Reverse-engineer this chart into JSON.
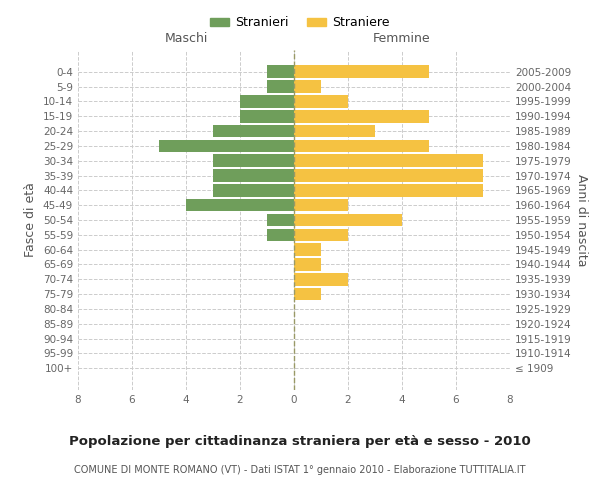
{
  "age_groups": [
    "100+",
    "95-99",
    "90-94",
    "85-89",
    "80-84",
    "75-79",
    "70-74",
    "65-69",
    "60-64",
    "55-59",
    "50-54",
    "45-49",
    "40-44",
    "35-39",
    "30-34",
    "25-29",
    "20-24",
    "15-19",
    "10-14",
    "5-9",
    "0-4"
  ],
  "birth_years": [
    "≤ 1909",
    "1910-1914",
    "1915-1919",
    "1920-1924",
    "1925-1929",
    "1930-1934",
    "1935-1939",
    "1940-1944",
    "1945-1949",
    "1950-1954",
    "1955-1959",
    "1960-1964",
    "1965-1969",
    "1970-1974",
    "1975-1979",
    "1980-1984",
    "1985-1989",
    "1990-1994",
    "1995-1999",
    "2000-2004",
    "2005-2009"
  ],
  "males": [
    0,
    0,
    0,
    0,
    0,
    0,
    0,
    0,
    0,
    1,
    1,
    4,
    3,
    3,
    3,
    5,
    3,
    2,
    2,
    1,
    1
  ],
  "females": [
    0,
    0,
    0,
    0,
    0,
    1,
    2,
    1,
    1,
    2,
    4,
    2,
    7,
    7,
    7,
    5,
    3,
    5,
    2,
    1,
    5
  ],
  "male_color": "#6f9e5b",
  "female_color": "#f5c242",
  "grid_color": "#cccccc",
  "bar_height": 0.85,
  "xlim": 8,
  "title": "Popolazione per cittadinanza straniera per età e sesso - 2010",
  "subtitle": "COMUNE DI MONTE ROMANO (VT) - Dati ISTAT 1° gennaio 2010 - Elaborazione TUTTITALIA.IT",
  "ylabel_left": "Fasce di età",
  "ylabel_right": "Anni di nascita",
  "legend_stranieri": "Stranieri",
  "legend_straniere": "Straniere",
  "maschi_label": "Maschi",
  "femmine_label": "Femmine",
  "background_color": "#ffffff",
  "title_fontsize": 9.5,
  "subtitle_fontsize": 7.0,
  "tick_fontsize": 7.5,
  "label_fontsize": 9
}
